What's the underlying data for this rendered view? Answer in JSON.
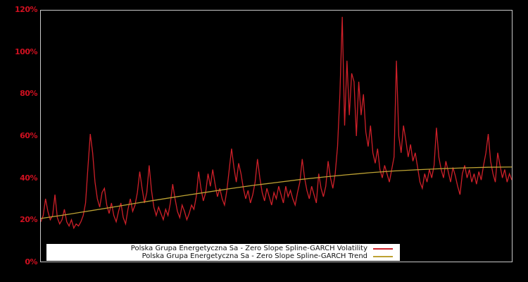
{
  "chart": {
    "background_color": "#000000",
    "plot_border_color": "#c9c9c9",
    "axis_label_color": "#d01020",
    "y_ticks": [
      "120%",
      "100%",
      "80%",
      "60%",
      "40%",
      "20%",
      "0%"
    ],
    "legend": {
      "background": "#ffffff",
      "items": [
        {
          "label": "Polska Grupa Energetyczna Sa - Zero Slope Spline-GARCH Volatility",
          "color": "#ce2029"
        },
        {
          "label": "Polska Grupa Energetyczna Sa - Zero Slope Spline-GARCH Trend",
          "color": "#bda233"
        }
      ]
    }
  },
  "chart_data": {
    "type": "line",
    "title": "",
    "xlabel": "",
    "ylabel": "",
    "unit": "%",
    "ylim": [
      0,
      120
    ],
    "y_tick_values": [
      0,
      20,
      40,
      60,
      80,
      100,
      120
    ],
    "x_axis_labels_visible": false,
    "grid": false,
    "legend_position": "bottom-center-inside",
    "series": [
      {
        "name": "Polska Grupa Energetyczna Sa - Zero Slope Spline-GARCH Volatility",
        "color": "#ce2029",
        "stroke_width": 1.3,
        "values": [
          19,
          22,
          30,
          24,
          20,
          22,
          32,
          21,
          18,
          20,
          25,
          19,
          17,
          20,
          16,
          18,
          17,
          19,
          22,
          28,
          45,
          61,
          52,
          38,
          30,
          26,
          33,
          35,
          27,
          23,
          28,
          22,
          19,
          24,
          28,
          21,
          18,
          25,
          30,
          24,
          27,
          33,
          43,
          35,
          28,
          33,
          46,
          34,
          26,
          22,
          26,
          23,
          20,
          25,
          22,
          28,
          37,
          30,
          24,
          21,
          27,
          24,
          20,
          23,
          27,
          25,
          31,
          43,
          35,
          29,
          33,
          42,
          36,
          44,
          37,
          31,
          35,
          30,
          27,
          34,
          44,
          54,
          45,
          38,
          47,
          42,
          35,
          30,
          34,
          28,
          32,
          38,
          49,
          40,
          33,
          29,
          35,
          31,
          27,
          33,
          30,
          36,
          32,
          28,
          36,
          31,
          34,
          30,
          27,
          33,
          38,
          49,
          40,
          34,
          30,
          36,
          32,
          28,
          42,
          35,
          31,
          36,
          48,
          40,
          35,
          42,
          55,
          80,
          117,
          65,
          96,
          70,
          90,
          86,
          60,
          86,
          70,
          80,
          62,
          55,
          65,
          52,
          47,
          54,
          44,
          40,
          46,
          42,
          38,
          44,
          50,
          96,
          60,
          52,
          65,
          58,
          50,
          56,
          48,
          52,
          45,
          38,
          35,
          42,
          38,
          44,
          40,
          46,
          64,
          50,
          44,
          40,
          48,
          43,
          38,
          45,
          41,
          36,
          32,
          42,
          46,
          40,
          44,
          38,
          42,
          37,
          43,
          39,
          46,
          52,
          61,
          48,
          42,
          38,
          52,
          46,
          40,
          44,
          38,
          42,
          39
        ]
      },
      {
        "name": "Polska Grupa Energetyczna Sa - Zero Slope Spline-GARCH Trend",
        "color": "#bda233",
        "stroke_width": 1.3,
        "values": [
          20.6,
          22.3,
          24.1,
          25.9,
          27.8,
          29.6,
          31.4,
          33.1,
          34.8,
          36.4,
          37.8,
          39.2,
          40.4,
          41.5,
          42.5,
          43.3,
          43.9,
          44.4,
          44.8,
          45.1,
          45.2
        ]
      }
    ]
  }
}
